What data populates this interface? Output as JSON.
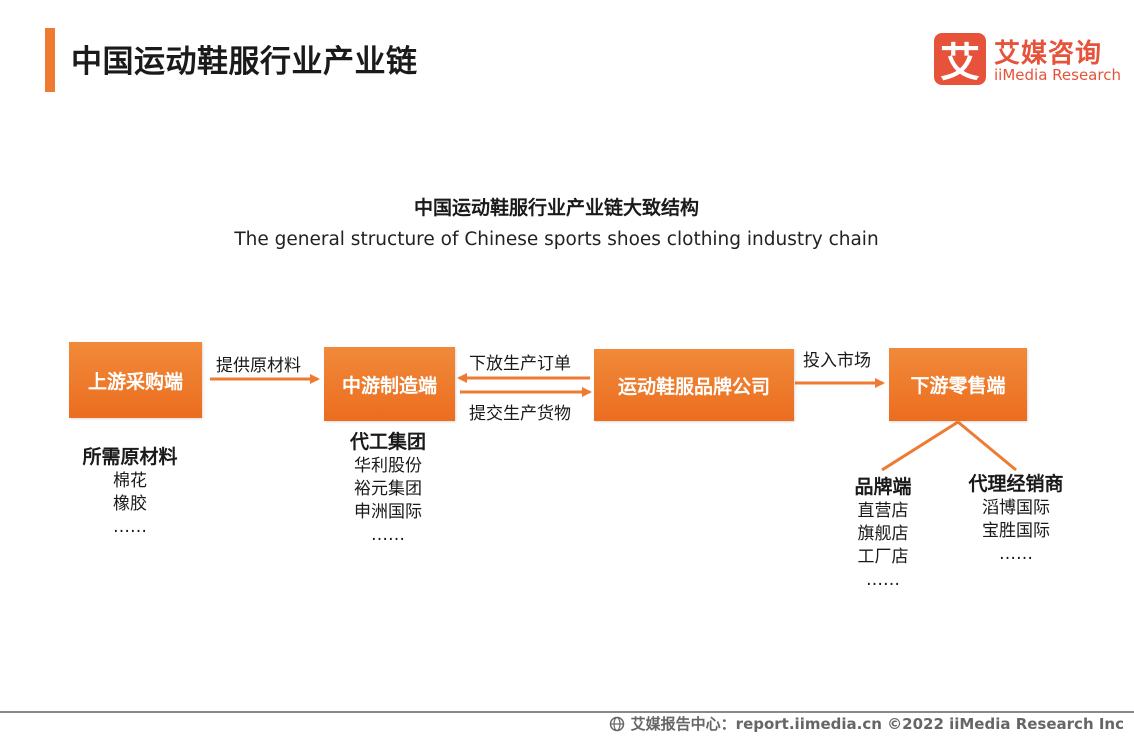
{
  "header": {
    "title": "中国运动鞋服行业产业链"
  },
  "logo": {
    "mark": "艾",
    "name_cn": "艾媒咨询",
    "name_en": "iiMedia Research"
  },
  "diagram": {
    "title": "中国运动鞋服行业产业链大致结构",
    "subtitle": "The general structure of Chinese sports shoes clothing industry chain",
    "nodes": {
      "upstream": "上游采购端",
      "midstream": "中游制造端",
      "brand": "运动鞋服品牌公司",
      "downstream": "下游零售端"
    },
    "edges": {
      "supply_materials": "提供原材料",
      "issue_orders": "下放生产订单",
      "submit_goods": "提交生产货物",
      "enter_market": "投入市场"
    },
    "upstream_list": {
      "head": "所需原材料",
      "items": [
        "棉花",
        "橡胶",
        "……"
      ]
    },
    "midstream_list": {
      "head": "代工集团",
      "items": [
        "华利股份",
        "裕元集团",
        "申洲国际",
        "……"
      ]
    },
    "brand_channel": {
      "head": "品牌端",
      "items": [
        "直营店",
        "旗舰店",
        "工厂店",
        "……"
      ]
    },
    "agent_channel": {
      "head": "代理经销商",
      "items": [
        "滔博国际",
        "宝胜国际",
        "……"
      ]
    }
  },
  "footer": {
    "text": "艾媒报告中心：report.iimedia.cn  ©2022  iiMedia Research  Inc"
  },
  "colors": {
    "accent": "#ef7a32",
    "node": "#ec6d1f",
    "logo": "#e6533a"
  }
}
